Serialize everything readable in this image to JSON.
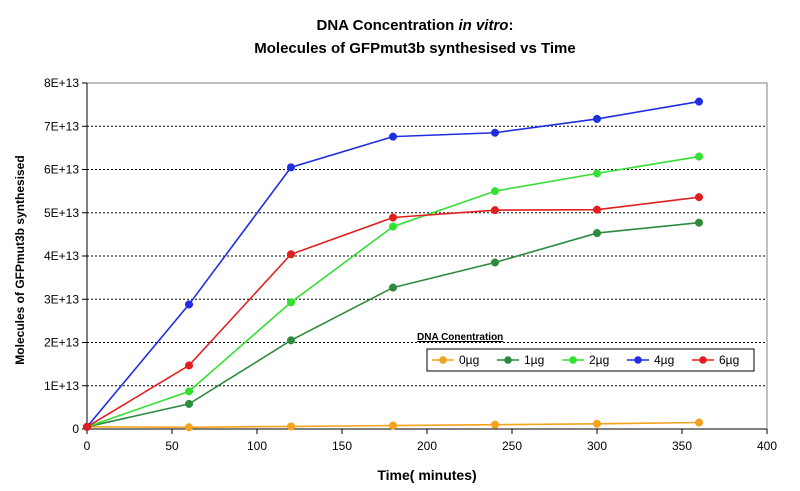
{
  "chart_data": {
    "type": "line",
    "title_parts": [
      {
        "text": "DNA Concentration ",
        "italic": false
      },
      {
        "text": "in vitro",
        "italic": true
      },
      {
        "text": ":",
        "italic": false
      }
    ],
    "subtitle": "Molecules of GFPmut3b synthesised vs Time",
    "xlabel": "Time( minutes)",
    "ylabel": "Molecules of GFPmut3b synthesised",
    "xlim": [
      0,
      400
    ],
    "ylim": [
      0,
      80000000000000.0
    ],
    "x_ticks": [
      0,
      50,
      100,
      150,
      200,
      250,
      300,
      350,
      400
    ],
    "x_tick_labels": [
      "0",
      "50",
      "100",
      "150",
      "200",
      "250",
      "300",
      "350",
      "400"
    ],
    "y_ticks": [
      0,
      10000000000000.0,
      20000000000000.0,
      30000000000000.0,
      40000000000000.0,
      50000000000000.0,
      60000000000000.0,
      70000000000000.0,
      80000000000000.0
    ],
    "y_tick_labels": [
      "0",
      "1E+13",
      "2E+13",
      "3E+13",
      "4E+13",
      "5E+13",
      "6E+13",
      "7E+13",
      "8E+13"
    ],
    "grid": "horizontal dashed",
    "legend": {
      "title": "DNA Conentration",
      "placement": "bottom-right"
    },
    "x": [
      0,
      60,
      120,
      180,
      240,
      300,
      360
    ],
    "series": [
      {
        "name": "0µg",
        "color": "#f5a21c",
        "values": [
          500000000000.0,
          400000000000.0,
          600000000000.0,
          800000000000.0,
          1000000000000.0,
          1200000000000.0,
          1500000000000.0
        ]
      },
      {
        "name": "1µg",
        "color": "#2e8b3e",
        "values": [
          500000000000.0,
          5800000000000.0,
          20500000000000.0,
          32700000000000.0,
          38500000000000.0,
          45300000000000.0,
          47700000000000.0
        ]
      },
      {
        "name": "2µg",
        "color": "#33e033",
        "values": [
          500000000000.0,
          8700000000000.0,
          29300000000000.0,
          46800000000000.0,
          55000000000000.0,
          59100000000000.0,
          63000000000000.0
        ]
      },
      {
        "name": "4µg",
        "color": "#1f2ee0",
        "values": [
          500000000000.0,
          28800000000000.0,
          60500000000000.0,
          67600000000000.0,
          68500000000000.0,
          71700000000000.0,
          75700000000000.0
        ]
      },
      {
        "name": "6µg",
        "color": "#e01f1f",
        "values": [
          500000000000.0,
          14700000000000.0,
          40400000000000.0,
          48900000000000.0,
          50600000000000.0,
          50700000000000.0,
          53600000000000.0
        ]
      }
    ]
  }
}
